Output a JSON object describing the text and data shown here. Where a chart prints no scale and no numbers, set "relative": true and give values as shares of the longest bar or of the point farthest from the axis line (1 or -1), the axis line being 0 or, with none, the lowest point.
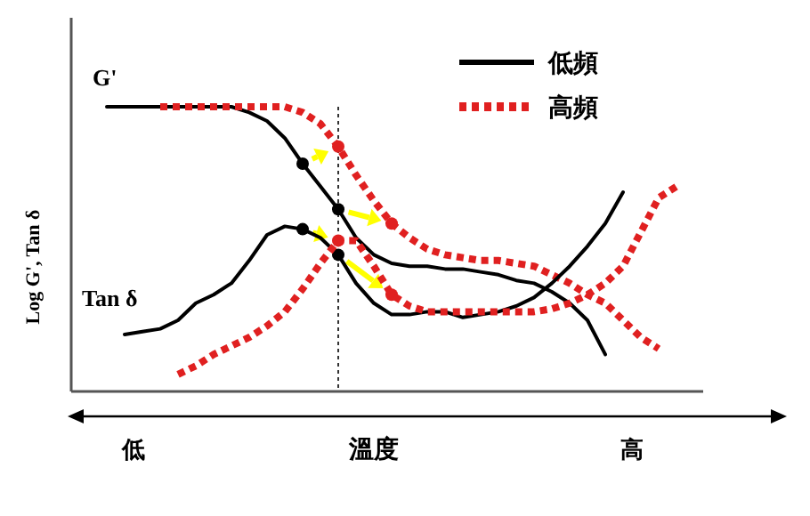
{
  "chart_data": {
    "type": "line",
    "relative": true,
    "xlabel": "溫度",
    "ylabel": "Log G', Tan δ",
    "annotations": [
      "G'",
      "Tan δ",
      "低",
      "高"
    ],
    "legend": "top right",
    "categories": [
      null,
      null,
      null,
      null,
      null,
      null,
      null,
      null,
      null,
      null,
      null,
      null,
      null,
      null,
      null,
      null,
      null,
      null,
      null,
      null,
      null,
      null,
      null,
      null,
      null,
      null,
      null,
      null,
      null,
      null,
      null,
      null,
      null
    ],
    "series": [
      {
        "name": "低頻",
        "color": "#000000",
        "line_style": "solid",
        "values": [
          1,
          1,
          1,
          1,
          1,
          1,
          1,
          1,
          0.98,
          0.95,
          0.89,
          0.8,
          0.72,
          0.64,
          0.54,
          0.48,
          0.45,
          0.44,
          0.44,
          0.43,
          0.43,
          0.42,
          0.41,
          0.39,
          0.38,
          0.35,
          0.31,
          0.25,
          0.13,
          null,
          null,
          null,
          null
        ]
      },
      {
        "name": "高頻",
        "color": "#e02020",
        "line_style": "dotted",
        "values": [
          null,
          null,
          null,
          1,
          1,
          1,
          1,
          1,
          1,
          1,
          1,
          0.98,
          0.94,
          0.86,
          0.76,
          0.67,
          0.59,
          0.54,
          0.5,
          0.48,
          0.47,
          0.46,
          0.46,
          0.45,
          0.44,
          0.41,
          0.38,
          0.34,
          0.31,
          0.25,
          0.19,
          0.15,
          null
        ]
      },
      {
        "color": "#000000",
        "line_style": "solid",
        "values": [
          null,
          0.2,
          0.21,
          0.22,
          0.25,
          0.31,
          0.34,
          0.38,
          0.46,
          0.55,
          0.58,
          0.57,
          0.54,
          0.48,
          0.38,
          0.31,
          0.27,
          0.27,
          0.28,
          0.28,
          0.26,
          0.27,
          0.28,
          0.3,
          0.33,
          0.38,
          0.44,
          0.51,
          0.59,
          0.7,
          null,
          null,
          null
        ]
      },
      {
        "color": "#e02020",
        "line_style": "dotted",
        "values": [
          null,
          null,
          null,
          null,
          0.06,
          0.09,
          0.13,
          0.16,
          0.19,
          0.23,
          0.28,
          0.36,
          0.45,
          0.53,
          0.53,
          0.44,
          0.34,
          0.3,
          0.28,
          0.28,
          0.28,
          0.28,
          0.28,
          0.28,
          0.28,
          0.29,
          0.31,
          0.34,
          0.38,
          0.44,
          0.56,
          0.68,
          0.72
        ]
      }
    ]
  }
}
